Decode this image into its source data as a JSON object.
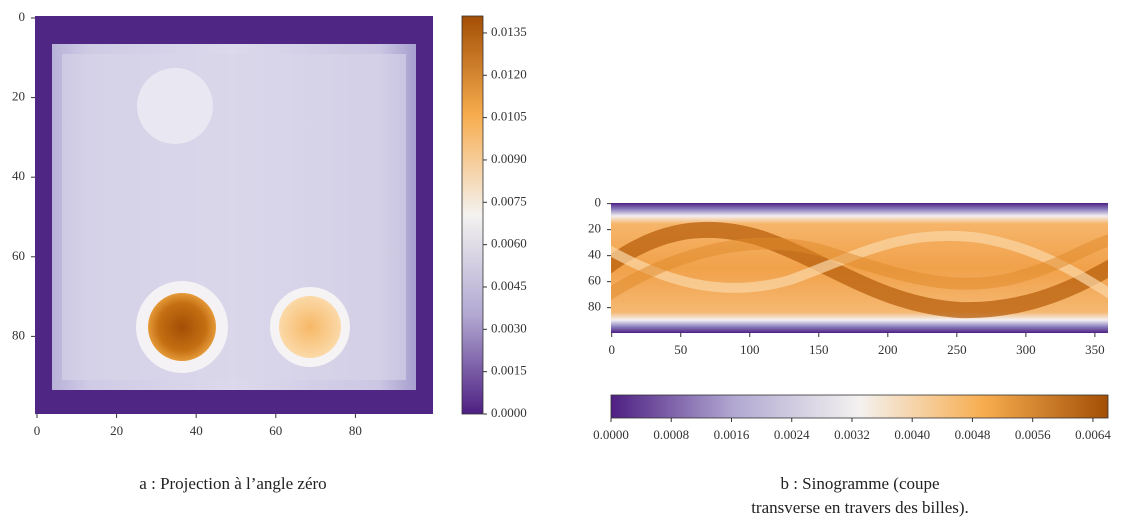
{
  "chart_data": [
    {
      "type": "heatmap",
      "xlim": [
        -0.5,
        99.5
      ],
      "ylim": [
        -0.5,
        99.5
      ],
      "y_inverted": true,
      "xticks": [
        0,
        20,
        40,
        60,
        80
      ],
      "yticks": [
        0,
        20,
        40,
        60,
        80
      ],
      "colormap": [
        "#4d1f82",
        "#b2a9d2",
        "#f4f2f0",
        "#f7ad4f",
        "#a34e05"
      ],
      "colorbar": {
        "orientation": "vertical",
        "lim": [
          0,
          0.0141
        ],
        "ticks": [
          {
            "value": 0,
            "label": "0.0000"
          },
          0.0015,
          {
            "value": 0.003,
            "label": "0.0030"
          },
          0.0045,
          {
            "value": 0.006,
            "label": "0.0060"
          },
          0.0075,
          {
            "value": 0.009,
            "label": "0.0090"
          },
          0.0105,
          {
            "value": 0.012,
            "label": "0.0120"
          },
          0.0135
        ]
      },
      "caption": [
        "a : Projection à l’angle zéro"
      ]
    },
    {
      "type": "heatmap",
      "xlim": [
        -0.5,
        359.5
      ],
      "ylim": [
        -0.5,
        99.5
      ],
      "y_inverted": true,
      "xticks": [
        0,
        50,
        100,
        150,
        200,
        250,
        300,
        350
      ],
      "yticks": [
        0,
        20,
        40,
        60,
        80
      ],
      "colormap": [
        "#4d1f82",
        "#b2a9d2",
        "#f4f2f0",
        "#f7ad4f",
        "#a34e05"
      ],
      "colorbar": {
        "orientation": "horizontal",
        "lim": [
          0,
          0.0066
        ],
        "ticks": [
          {
            "value": 0,
            "label": "0.0000"
          },
          0.0008,
          0.0016,
          0.0024,
          0.0032,
          {
            "value": 0.004,
            "label": "0.0040"
          },
          0.0048,
          0.0056,
          0.0064
        ]
      },
      "caption": [
        "b : Sinogramme (coupe",
        "transverse en travers des billes)."
      ]
    }
  ]
}
